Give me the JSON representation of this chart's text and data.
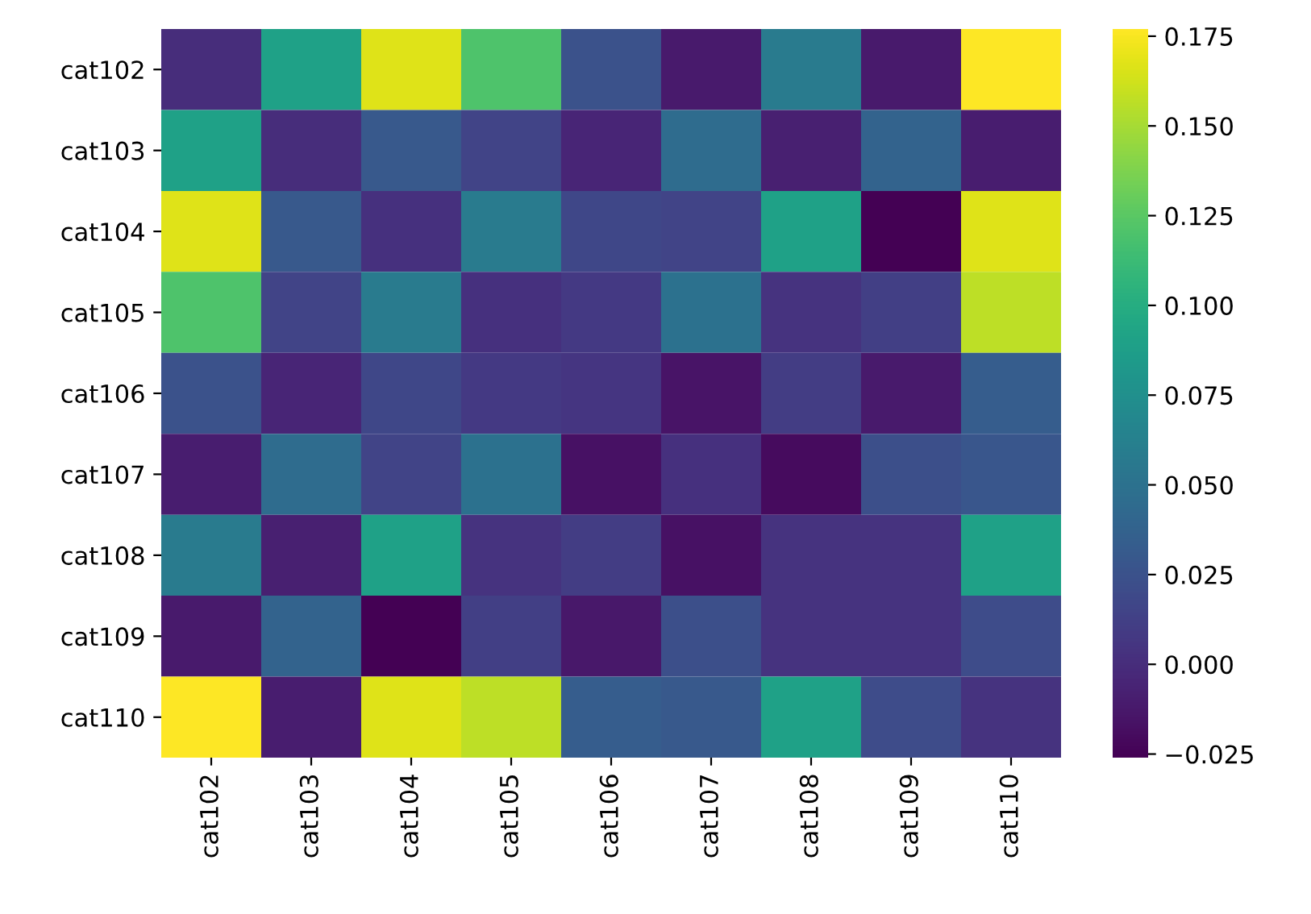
{
  "chart_data": {
    "type": "heatmap",
    "categories": [
      "cat102",
      "cat103",
      "cat104",
      "cat105",
      "cat106",
      "cat107",
      "cat108",
      "cat109",
      "cat110"
    ],
    "y_categories": [
      "cat102",
      "cat103",
      "cat104",
      "cat105",
      "cat106",
      "cat107",
      "cat108",
      "cat109",
      "cat110"
    ],
    "cells": [
      [
        0.0,
        0.09,
        0.167,
        0.12,
        0.025,
        -0.012,
        0.058,
        -0.012,
        0.177
      ],
      [
        0.09,
        0.0,
        0.03,
        0.015,
        -0.005,
        0.045,
        -0.008,
        0.038,
        -0.01
      ],
      [
        0.167,
        0.03,
        0.002,
        0.058,
        0.017,
        0.015,
        0.09,
        -0.026,
        0.167
      ],
      [
        0.12,
        0.015,
        0.058,
        0.002,
        0.008,
        0.05,
        0.004,
        0.012,
        0.157
      ],
      [
        0.025,
        -0.005,
        0.017,
        0.008,
        0.005,
        -0.015,
        0.01,
        -0.012,
        0.033
      ],
      [
        -0.01,
        0.045,
        0.015,
        0.05,
        -0.017,
        0.002,
        -0.02,
        0.023,
        0.028
      ],
      [
        0.058,
        -0.008,
        0.09,
        0.004,
        0.01,
        -0.017,
        0.004,
        0.004,
        0.09
      ],
      [
        -0.012,
        0.038,
        -0.026,
        0.012,
        -0.013,
        0.023,
        0.004,
        0.004,
        0.02
      ],
      [
        0.177,
        -0.01,
        0.167,
        0.157,
        0.033,
        0.03,
        0.09,
        0.02,
        0.004
      ]
    ],
    "clim": [
      -0.026,
      0.177
    ],
    "cticks": [
      {
        "value": -0.025,
        "label": "−0.025"
      },
      {
        "value": 0.0,
        "label": "0.000"
      },
      {
        "value": 0.025,
        "label": "0.025"
      },
      {
        "value": 0.05,
        "label": "0.050"
      },
      {
        "value": 0.075,
        "label": "0.075"
      },
      {
        "value": 0.1,
        "label": "0.100"
      },
      {
        "value": 0.125,
        "label": "0.125"
      },
      {
        "value": 0.15,
        "label": "0.150"
      },
      {
        "value": 0.175,
        "label": "0.175"
      }
    ]
  }
}
